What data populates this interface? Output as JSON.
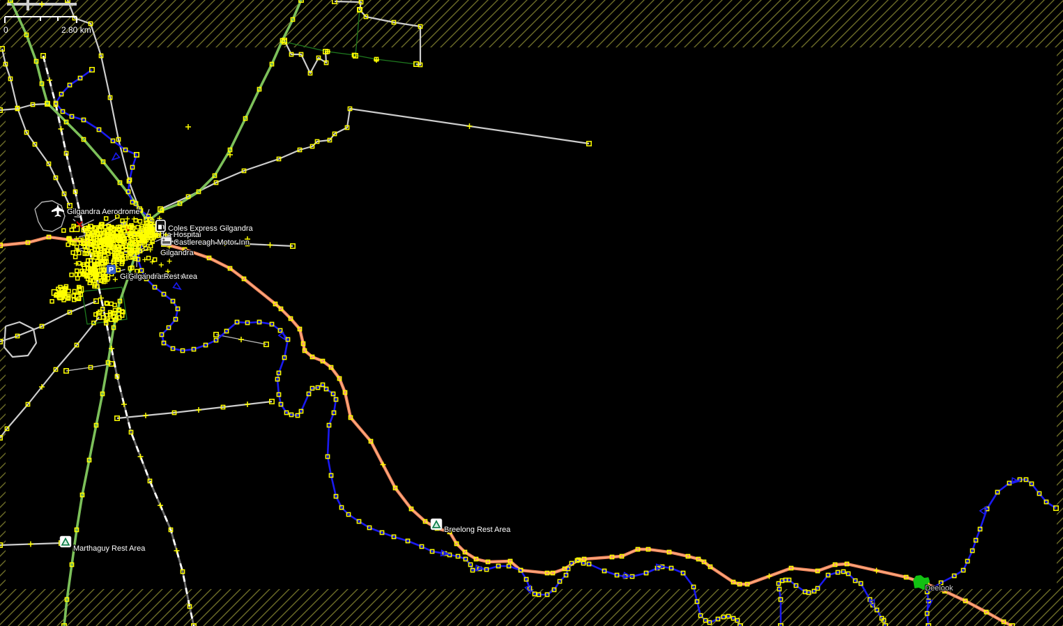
{
  "app": {
    "name": "map-editor-canvas",
    "view": "slippy-map-edit-mode"
  },
  "scale_bar": {
    "zero_label": "0",
    "distance_label": "2.80 km"
  },
  "labels": {
    "aerodrome": "Gilgandra Aerodrome",
    "fuel_station": "Coles Express Gilgandra",
    "hospital": "Gilgandra Hospital",
    "motel": "Castlereagh Motor Inn",
    "town": "Gilgandra",
    "town_rest_area": "Gilgandra Rest Area",
    "marthaguy_rest_area": "Marthaguy Rest Area",
    "breelong_rest_area": "Breelong Rest Area",
    "locality_deelook": "Deelook"
  },
  "icons": {
    "airport": "airplane-icon",
    "fuel": "fuel-pump-icon",
    "motel": "motel-bed-icon",
    "parking": "parking-p-icon",
    "campsite": "campsite-tent-icon"
  },
  "colors": {
    "background": "#000000",
    "outside_download_hatch": "#6e6e28",
    "node": "#ffff00",
    "trunk_road": "#7cc05a",
    "primary_road": "#ef855a",
    "minor_road": "#cdcdcd",
    "railway": "#ffffff",
    "waterway": "#1a1af0",
    "barrier_line": "#1e7a1e",
    "woodland": "#12c112",
    "label_text": "#ffffff",
    "parking_icon_blue": "#3059c7",
    "selection_red": "#dd0000"
  }
}
